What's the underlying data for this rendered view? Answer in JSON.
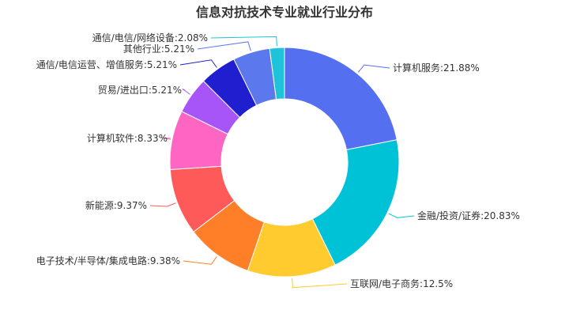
{
  "chart_data": {
    "type": "pie",
    "variant": "donut",
    "title": "信息对抗技术专业就业行业分布",
    "legend": "none",
    "slices": [
      {
        "name": "计算机服务",
        "value": 21.88,
        "label": "计算机服务:21.88%",
        "color": "#5470f0"
      },
      {
        "name": "金融/投资/证券",
        "value": 20.83,
        "label": "金融/投资/证券:20.83%",
        "color": "#00c2d6"
      },
      {
        "name": "互联网/电子商务",
        "value": 12.5,
        "label": "互联网/电子商务:12.5%",
        "color": "#ffcb2e"
      },
      {
        "name": "电子技术/半导体/集成电路",
        "value": 9.38,
        "label": "电子技术/半导体/集成电路:9.38%",
        "color": "#ff7f28"
      },
      {
        "name": "新能源",
        "value": 9.37,
        "label": "新能源:9.37%",
        "color": "#ff5a5a"
      },
      {
        "name": "计算机软件",
        "value": 8.33,
        "label": "计算机软件:8.33%",
        "color": "#ff66c4"
      },
      {
        "name": "贸易/进出口",
        "value": 5.21,
        "label": "贸易/进出口:5.21%",
        "color": "#a855f7"
      },
      {
        "name": "通信/电信运营、增值服务",
        "value": 5.21,
        "label": "通信/电信运营、增值服务:5.21%",
        "color": "#1f1fcf"
      },
      {
        "name": "其他行业",
        "value": 5.21,
        "label": "其他行业:5.21%",
        "color": "#5b78ec"
      },
      {
        "name": "通信/电信/网络设备",
        "value": 2.08,
        "label": "通信/电信/网络设备:2.08%",
        "color": "#1fc3d9"
      }
    ]
  }
}
